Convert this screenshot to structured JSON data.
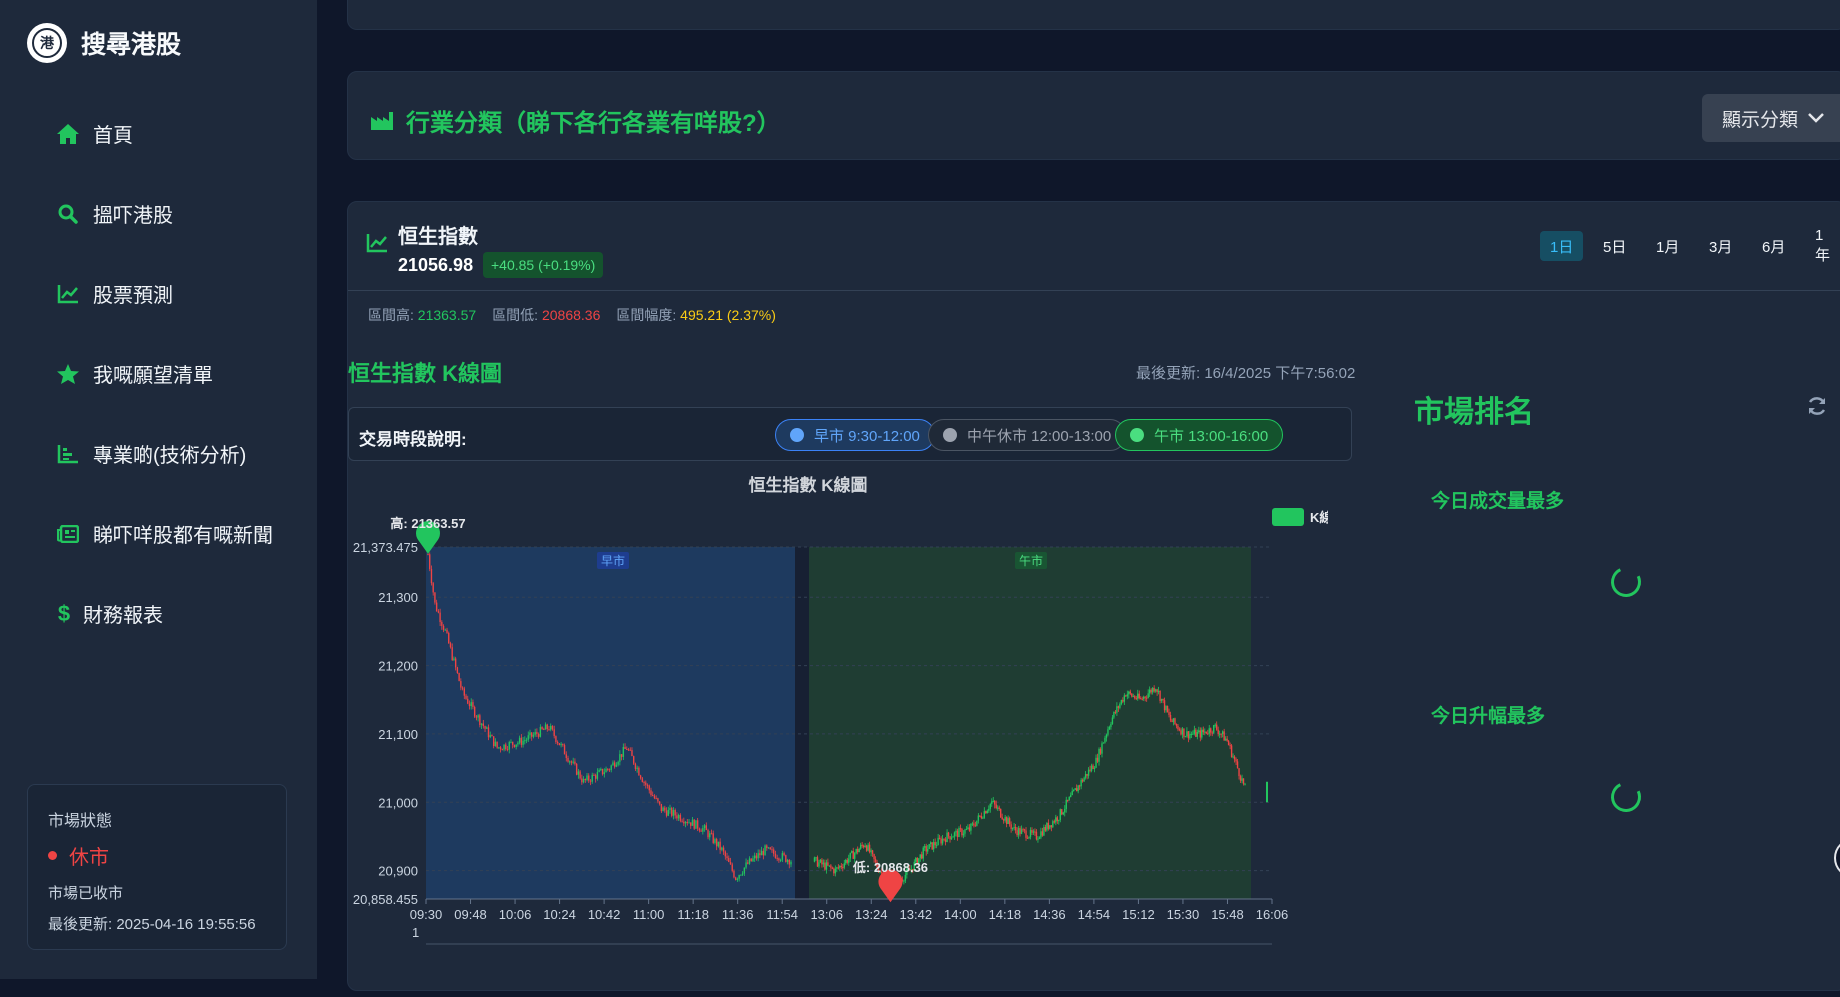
{
  "app": {
    "title": "搜尋港股"
  },
  "nav": [
    {
      "label": "首頁",
      "icon": "home-icon"
    },
    {
      "label": "搵吓港股",
      "icon": "search-icon"
    },
    {
      "label": "股票預測",
      "icon": "chart-line-icon"
    },
    {
      "label": "我嘅願望清單",
      "icon": "star-icon"
    },
    {
      "label": "專業啲(技術分析)",
      "icon": "bar-chart-icon"
    },
    {
      "label": "睇吓咩股都有嘅新聞",
      "icon": "newspaper-icon"
    },
    {
      "label": "財務報表",
      "icon": "dollar-icon"
    }
  ],
  "market_status": {
    "title": "市場狀態",
    "state": "休市",
    "sub": "市場已收市",
    "updated": "最後更新: 2025-04-16 19:55:56"
  },
  "industry": {
    "title": "行業分類（睇下各行各業有咩股?）",
    "button": "顯示分類"
  },
  "index": {
    "name": "恒生指數",
    "value": "21056.98",
    "change": "+40.85 (+0.19%)",
    "periods": [
      "1日",
      "5日",
      "1月",
      "3月",
      "6月",
      "1年"
    ],
    "active_period": "1日",
    "range_high_label": "區間高:",
    "range_high": "21363.57",
    "range_low_label": "區間低:",
    "range_low": "20868.36",
    "range_amp_label": "區間幅度:",
    "range_amp": "495.21 (2.37%)"
  },
  "kline": {
    "title": "恒生指數 K線圖",
    "last_update": "最後更新: 16/4/2025 下午7:56:02",
    "legend_label": "交易時段說明:",
    "sessions": [
      {
        "label": "早市 9:30-12:00",
        "color": "#60a5fa"
      },
      {
        "label": "中午休市 12:00-13:00",
        "color": "#9ca3af"
      },
      {
        "label": "午市 13:00-16:00",
        "color": "#4ade80"
      }
    ]
  },
  "ranking": {
    "title": "市場排名",
    "sections": [
      "今日成交量最多",
      "今日升幅最多"
    ]
  },
  "chart_data": {
    "type": "candlestick",
    "title": "恒生指數 K線圖",
    "series_name": "K線",
    "ylim": [
      20858.455,
      21373.475
    ],
    "yticks": [
      "21,373.475",
      "21,300",
      "21,200",
      "21,100",
      "21,000",
      "20,900",
      "20,858.455"
    ],
    "ytick_values": [
      21373.475,
      21300,
      21200,
      21100,
      21000,
      20900,
      20858.455
    ],
    "xticks": [
      "09:30",
      "09:48",
      "10:06",
      "10:24",
      "10:42",
      "11:00",
      "11:18",
      "11:36",
      "11:54",
      "13:06",
      "13:24",
      "13:42",
      "14:00",
      "14:18",
      "14:36",
      "14:54",
      "15:12",
      "15:30",
      "15:48",
      "16:06"
    ],
    "x_extra_label": "1",
    "session_labels": [
      "早市",
      "午市"
    ],
    "high_marker": {
      "label": "高: 21363.57",
      "value": 21363.57,
      "time": "09:30"
    },
    "low_marker": {
      "label": "低: 20868.36",
      "value": 20868.36,
      "time": "13:30"
    },
    "anchors": [
      [
        0,
        21363
      ],
      [
        4,
        21290
      ],
      [
        10,
        21250
      ],
      [
        20,
        21160
      ],
      [
        30,
        21120
      ],
      [
        40,
        21080
      ],
      [
        55,
        21090
      ],
      [
        70,
        21110
      ],
      [
        80,
        21070
      ],
      [
        90,
        21030
      ],
      [
        105,
        21050
      ],
      [
        115,
        21080
      ],
      [
        125,
        21030
      ],
      [
        135,
        20990
      ],
      [
        145,
        20980
      ],
      [
        160,
        20960
      ],
      [
        170,
        20930
      ],
      [
        178,
        20890
      ],
      [
        185,
        20910
      ],
      [
        195,
        20930
      ],
      [
        205,
        20920
      ],
      [
        210,
        20915
      ],
      [
        225,
        20900
      ],
      [
        235,
        20920
      ],
      [
        245,
        20940
      ],
      [
        252,
        20910
      ],
      [
        258,
        20890
      ],
      [
        265,
        20880
      ],
      [
        275,
        20900
      ],
      [
        285,
        20930
      ],
      [
        300,
        20950
      ],
      [
        315,
        20960
      ],
      [
        330,
        21000
      ],
      [
        345,
        20960
      ],
      [
        360,
        20950
      ],
      [
        375,
        20980
      ],
      [
        390,
        21030
      ],
      [
        400,
        21060
      ],
      [
        410,
        21120
      ],
      [
        420,
        21160
      ],
      [
        430,
        21150
      ],
      [
        440,
        21170
      ],
      [
        450,
        21120
      ],
      [
        460,
        21100
      ],
      [
        470,
        21100
      ],
      [
        480,
        21110
      ],
      [
        488,
        21090
      ],
      [
        495,
        21050
      ],
      [
        500,
        21020
      ]
    ]
  }
}
